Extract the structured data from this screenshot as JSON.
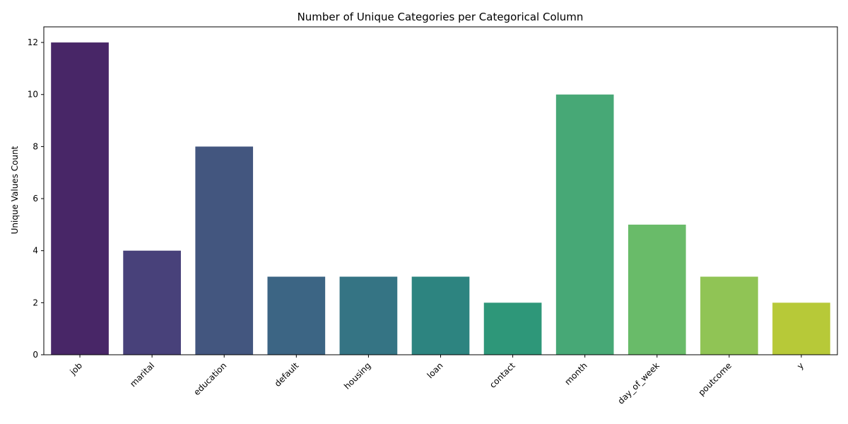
{
  "chart_data": {
    "type": "bar",
    "title": "Number of Unique Categories per Categorical Column",
    "xlabel": "",
    "ylabel": "Unique Values Count",
    "categories": [
      "job",
      "marital",
      "education",
      "default",
      "housing",
      "loan",
      "contact",
      "month",
      "day_of_week",
      "poutcome",
      "y"
    ],
    "values": [
      12,
      4,
      8,
      3,
      3,
      3,
      2,
      10,
      5,
      3,
      2
    ],
    "colors": [
      "#482667",
      "#48417a",
      "#43567f",
      "#3c6584",
      "#357484",
      "#2d8480",
      "#2e9779",
      "#47a876",
      "#69bb69",
      "#90c455",
      "#b7c938"
    ],
    "ylim": [
      0,
      12.6
    ],
    "yticks": [
      0,
      2,
      4,
      6,
      8,
      10,
      12
    ],
    "grid": false,
    "legend": "none"
  }
}
